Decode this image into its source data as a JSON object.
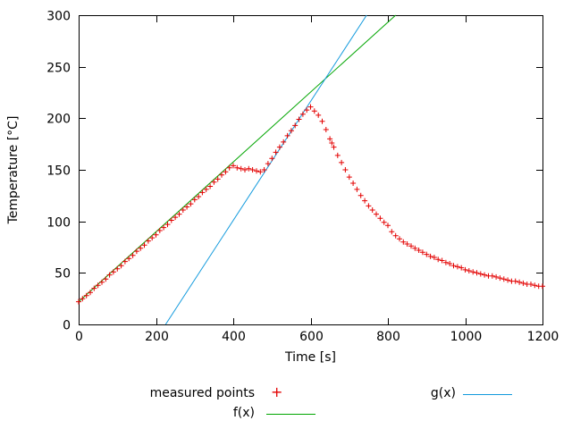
{
  "chart_data": {
    "type": "scatter",
    "title": "",
    "xlabel": "Time [s]",
    "ylabel": "Temperature [°C]",
    "xlim": [
      0,
      1200
    ],
    "ylim": [
      0,
      300
    ],
    "x_ticks": [
      0,
      200,
      400,
      600,
      800,
      1000,
      1200
    ],
    "y_ticks": [
      0,
      50,
      100,
      150,
      200,
      250,
      300
    ],
    "grid": false,
    "legend_position": "below",
    "series": [
      {
        "name": "measured points",
        "type": "scatter",
        "marker": "plus",
        "color": "#e30000",
        "points": [
          [
            0,
            22
          ],
          [
            10,
            25
          ],
          [
            20,
            28
          ],
          [
            30,
            31
          ],
          [
            40,
            35
          ],
          [
            50,
            38
          ],
          [
            60,
            41
          ],
          [
            70,
            44
          ],
          [
            80,
            48
          ],
          [
            90,
            51
          ],
          [
            100,
            54
          ],
          [
            110,
            57
          ],
          [
            120,
            61
          ],
          [
            130,
            64
          ],
          [
            140,
            67
          ],
          [
            150,
            71
          ],
          [
            160,
            74
          ],
          [
            170,
            77
          ],
          [
            180,
            81
          ],
          [
            190,
            84
          ],
          [
            200,
            87
          ],
          [
            210,
            91
          ],
          [
            220,
            94
          ],
          [
            230,
            97
          ],
          [
            240,
            101
          ],
          [
            250,
            104
          ],
          [
            260,
            107
          ],
          [
            270,
            111
          ],
          [
            280,
            114
          ],
          [
            290,
            117
          ],
          [
            300,
            121
          ],
          [
            310,
            124
          ],
          [
            320,
            128
          ],
          [
            330,
            131
          ],
          [
            340,
            134
          ],
          [
            350,
            138
          ],
          [
            360,
            141
          ],
          [
            370,
            145
          ],
          [
            380,
            148
          ],
          [
            390,
            152
          ],
          [
            400,
            154
          ],
          [
            410,
            152
          ],
          [
            420,
            151
          ],
          [
            430,
            150
          ],
          [
            440,
            151
          ],
          [
            450,
            150
          ],
          [
            460,
            149
          ],
          [
            470,
            148
          ],
          [
            480,
            150
          ],
          [
            490,
            156
          ],
          [
            500,
            161
          ],
          [
            510,
            167
          ],
          [
            520,
            172
          ],
          [
            530,
            177
          ],
          [
            540,
            183
          ],
          [
            550,
            188
          ],
          [
            560,
            193
          ],
          [
            570,
            199
          ],
          [
            580,
            204
          ],
          [
            590,
            208
          ],
          [
            600,
            211
          ],
          [
            610,
            207
          ],
          [
            620,
            203
          ],
          [
            630,
            197
          ],
          [
            640,
            189
          ],
          [
            650,
            180
          ],
          [
            655,
            176
          ],
          [
            660,
            172
          ],
          [
            670,
            164
          ],
          [
            680,
            157
          ],
          [
            690,
            150
          ],
          [
            700,
            143
          ],
          [
            710,
            137
          ],
          [
            720,
            131
          ],
          [
            730,
            125
          ],
          [
            740,
            120
          ],
          [
            750,
            115
          ],
          [
            760,
            111
          ],
          [
            770,
            107
          ],
          [
            780,
            103
          ],
          [
            790,
            99
          ],
          [
            800,
            96
          ],
          [
            810,
            90
          ],
          [
            820,
            86
          ],
          [
            830,
            83
          ],
          [
            840,
            80
          ],
          [
            850,
            78
          ],
          [
            860,
            76
          ],
          [
            870,
            74
          ],
          [
            880,
            72
          ],
          [
            890,
            70
          ],
          [
            900,
            68
          ],
          [
            910,
            66
          ],
          [
            920,
            65
          ],
          [
            930,
            63
          ],
          [
            940,
            62
          ],
          [
            950,
            60
          ],
          [
            960,
            59
          ],
          [
            970,
            57
          ],
          [
            980,
            56
          ],
          [
            990,
            55
          ],
          [
            1000,
            53
          ],
          [
            1010,
            52
          ],
          [
            1020,
            51
          ],
          [
            1030,
            50
          ],
          [
            1040,
            49
          ],
          [
            1050,
            48
          ],
          [
            1060,
            47
          ],
          [
            1070,
            47
          ],
          [
            1080,
            46
          ],
          [
            1090,
            45
          ],
          [
            1100,
            44
          ],
          [
            1110,
            43
          ],
          [
            1120,
            42
          ],
          [
            1130,
            42
          ],
          [
            1140,
            41
          ],
          [
            1150,
            40
          ],
          [
            1160,
            39
          ],
          [
            1170,
            39
          ],
          [
            1180,
            38
          ],
          [
            1190,
            37
          ],
          [
            1200,
            37
          ]
        ]
      },
      {
        "name": "f(x)",
        "type": "line",
        "color": "#00a500",
        "p1": [
          0,
          22
        ],
        "p2": [
          820,
          300
        ]
      },
      {
        "name": "g(x)",
        "type": "line",
        "color": "#129add",
        "p1": [
          225,
          0
        ],
        "p2": [
          745,
          300
        ]
      }
    ]
  }
}
